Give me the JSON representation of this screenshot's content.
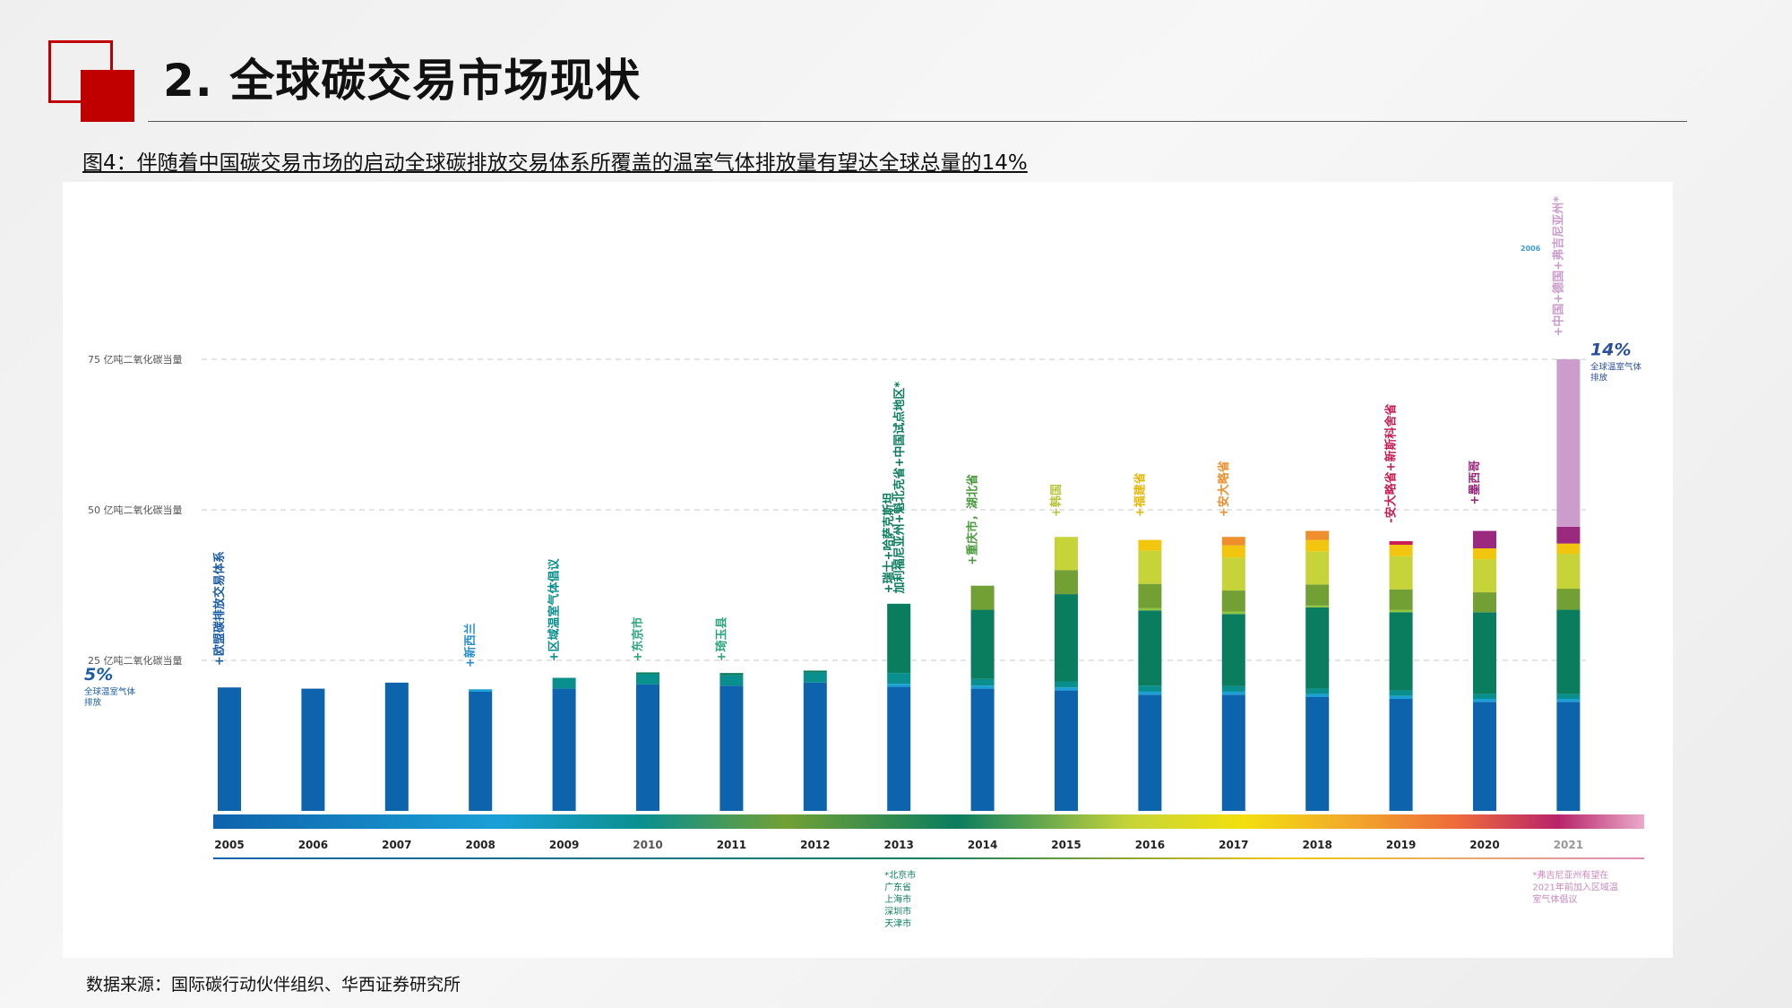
{
  "page": {
    "title": "2. 全球碳交易市场现状",
    "figure_caption": "图4：伴随着中国碳交易市场的启动全球碳排放交易体系所覆盖的温室气体排放量有望达全球总量的14%",
    "source": "数据来源：国际碳行动伙伴组织、华西证券研究所"
  },
  "colors": {
    "accent_red": "#c00000",
    "eu_blue": "#0e63ad",
    "teal": "#0a8f8f",
    "dark_green": "#0b7d5f",
    "olive_green": "#72a035",
    "yellow_green": "#c6d43a",
    "yellow": "#f2c60f",
    "orange": "#ee8e2c",
    "crimson": "#c81e54",
    "purple": "#9b2a7e",
    "lilac": "#cc9ccc"
  },
  "chart_data": {
    "type": "bar",
    "stacked": true,
    "categories": [
      "2005",
      "2006",
      "2007",
      "2008",
      "2009",
      "2010",
      "2011",
      "2012",
      "2013",
      "2014",
      "2015",
      "2016",
      "2017",
      "2018",
      "2019",
      "2020",
      "2021"
    ],
    "y_ticks": [
      {
        "value": 25,
        "label": "25 亿吨二氧化碳当量"
      },
      {
        "value": 50,
        "label": "50 亿吨二氧化碳当量"
      },
      {
        "value": 75,
        "label": "75 亿吨二氧化碳当量"
      }
    ],
    "ylim": [
      0,
      100
    ],
    "grid": "dashed horizontal",
    "series": [
      {
        "color": "#0e63ad",
        "values": [
          20.5,
          20.3,
          21.3,
          19.8,
          20.3,
          21.0,
          20.8,
          21.3,
          20.6,
          20.3,
          20.0,
          19.3,
          19.3,
          18.9,
          18.6,
          18.1,
          18.1
        ]
      },
      {
        "color": "#1aa0d6",
        "values": [
          0,
          0,
          0,
          0.4,
          0,
          0,
          0,
          0,
          0.5,
          0.5,
          0.5,
          0.5,
          0.5,
          0.5,
          0.5,
          0.5,
          0.5
        ]
      },
      {
        "color": "#0a8f8f",
        "values": [
          0,
          0,
          0,
          0,
          1.8,
          1.7,
          1.7,
          1.7,
          1.8,
          1.1,
          1.0,
          1.0,
          0.9,
          0.9,
          0.9,
          0.8,
          0.8
        ]
      },
      {
        "color": "#0b7d5f",
        "values": [
          0,
          0,
          0,
          0,
          0,
          0.3,
          0.4,
          0.3,
          11.5,
          11.5,
          14.5,
          12.5,
          12.0,
          13.5,
          13.0,
          13.6,
          14.0
        ]
      },
      {
        "color": "#8fc43e",
        "values": [
          0,
          0,
          0,
          0,
          0,
          0,
          0,
          0,
          0,
          0,
          0,
          0.4,
          0.4,
          0.3,
          0.4,
          0,
          0
        ]
      },
      {
        "color": "#72a035",
        "values": [
          0,
          0,
          0,
          0,
          0,
          0,
          0,
          0,
          0,
          4.0,
          4.0,
          4.0,
          3.5,
          3.5,
          3.4,
          3.3,
          3.5
        ]
      },
      {
        "color": "#c6d43a",
        "values": [
          0,
          0,
          0,
          0,
          0,
          0,
          0,
          0,
          0,
          0,
          5.5,
          5.5,
          5.5,
          5.5,
          5.5,
          5.5,
          5.8
        ]
      },
      {
        "color": "#f2c60f",
        "values": [
          0,
          0,
          0,
          0,
          0,
          0,
          0,
          0,
          0,
          0,
          0,
          1.8,
          2.0,
          1.9,
          1.9,
          1.8,
          1.7
        ]
      },
      {
        "color": "#ee8e2c",
        "values": [
          0,
          0,
          0,
          0,
          0,
          0,
          0,
          0,
          0,
          0,
          0,
          0,
          1.4,
          1.5,
          0,
          0,
          0
        ]
      },
      {
        "color": "#c81e54",
        "values": [
          0,
          0,
          0,
          0,
          0,
          0,
          0,
          0,
          0,
          0,
          0,
          0,
          0,
          0,
          0.6,
          0,
          0
        ]
      },
      {
        "color": "#9b2a7e",
        "values": [
          0,
          0,
          0,
          0,
          0,
          0,
          0,
          0,
          0,
          0,
          0,
          0,
          0,
          0,
          0,
          2.9,
          2.8
        ]
      },
      {
        "color": "#cc9ccc",
        "values": [
          0,
          0,
          0,
          0,
          0,
          0,
          0,
          0,
          0,
          0,
          0,
          0,
          0,
          0,
          0,
          0,
          27.8
        ]
      }
    ],
    "bar_annotations": [
      {
        "category": "2005",
        "text": "+欧盟碳排放交易体系",
        "value": 23.8,
        "color": "#1a5da6"
      },
      {
        "category": "2008",
        "text": "+新西兰",
        "value": 23.5,
        "color": "#2a8fce"
      },
      {
        "category": "2009",
        "text": "+区域温室气体倡议",
        "value": 24.5,
        "color": "#0a8f8f"
      },
      {
        "category": "2010",
        "text": "+东京市",
        "value": 24.5,
        "color": "#2ca67c"
      },
      {
        "category": "2011",
        "text": "+琦玉县",
        "value": 24.5,
        "color": "#2ca67c"
      },
      {
        "category": "2013",
        "text": "+瑞士+哈萨克斯坦",
        "value": 35.8,
        "color": "#0b7d5f"
      },
      {
        "category": "2013",
        "text": "加利福尼亚州+魁北克省+中国试点地区*",
        "value": 35.8,
        "color": "#0b7d5f",
        "stack_col": 1
      },
      {
        "category": "2014",
        "text": "+重庆市，湖北省",
        "value": 40.5,
        "color": "#4a9a3c"
      },
      {
        "category": "2015",
        "text": "+韩国",
        "value": 48.5,
        "color": "#b8c43a"
      },
      {
        "category": "2016",
        "text": "+福建省",
        "value": 48.5,
        "color": "#e5b80c"
      },
      {
        "category": "2017",
        "text": "+安大略省",
        "value": 48.5,
        "color": "#ee8e2c"
      },
      {
        "category": "2019",
        "text": "-安大略省+新斯科舍省",
        "value": 47.5,
        "color": "#c81e54"
      },
      {
        "category": "2020",
        "text": "+墨西哥",
        "value": 50.5,
        "color": "#9b2a7e"
      },
      {
        "category": "2021",
        "text": "+中国+德国+弗吉尼亚州*",
        "value": 78.5,
        "color": "#cc9ccc"
      }
    ],
    "callouts": [
      {
        "pct": "5%",
        "desc": "全球温室气体排放",
        "value": 20.5,
        "color": "#1a5da6"
      },
      {
        "pct": "14%",
        "desc": "全球温室气体排放",
        "value": 74.5,
        "color": "#2a4e9e"
      }
    ],
    "footnotes": [
      {
        "category": "2013",
        "lines": [
          "*北京市",
          "广东省",
          "上海市",
          "深圳市",
          "天津市"
        ],
        "color": "#0b7d5f"
      },
      {
        "category": "2021",
        "lines": [
          "*弗吉尼亚州有望在",
          "2021年前加入区域温",
          "室气体倡议"
        ],
        "color": "#cc88c0"
      }
    ],
    "corner_label": "2006"
  }
}
